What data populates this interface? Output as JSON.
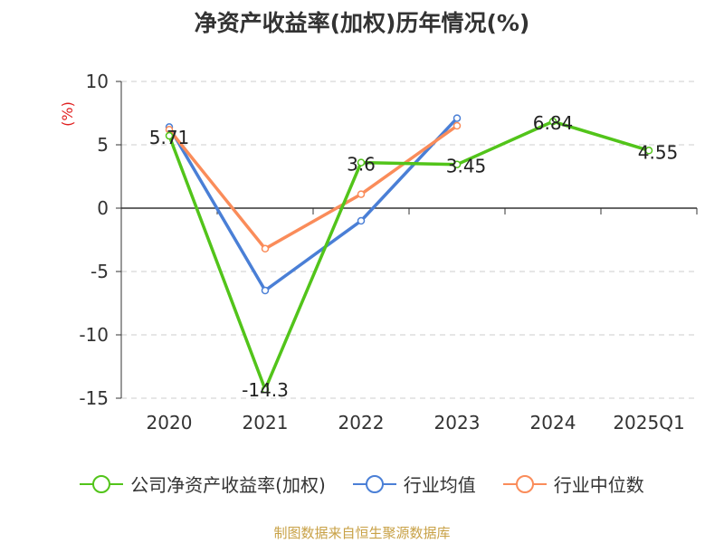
{
  "chart_data": {
    "type": "line",
    "title": "净资产收益率(加权)历年情况(%)",
    "ylabel": "(%)",
    "categories": [
      "2020",
      "2021",
      "2022",
      "2023",
      "2024",
      "2025Q1"
    ],
    "ylim": [
      -15,
      10
    ],
    "yticks": [
      10,
      5,
      0,
      -5,
      -10,
      -15
    ],
    "grid": true,
    "legend_position": "bottom",
    "series": [
      {
        "name": "公司净资产收益率(加权)",
        "color": "#52c41a",
        "values": [
          5.71,
          -14.3,
          3.6,
          3.45,
          6.84,
          4.55
        ],
        "labels": [
          "5.71",
          "-14.3",
          "3.6",
          "3.45",
          "6.84",
          "4.55"
        ]
      },
      {
        "name": "行业均值",
        "color": "#4a7fd6",
        "values": [
          6.4,
          -6.5,
          -1.0,
          7.1,
          null,
          null
        ]
      },
      {
        "name": "行业中位数",
        "color": "#fa8c5a",
        "values": [
          6.2,
          -3.2,
          1.1,
          6.5,
          null,
          null
        ]
      }
    ]
  },
  "source": "制图数据来自恒生聚源数据库"
}
